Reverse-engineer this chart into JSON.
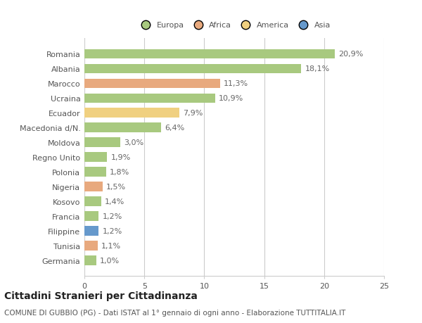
{
  "categories": [
    "Romania",
    "Albania",
    "Marocco",
    "Ucraina",
    "Ecuador",
    "Macedonia d/N.",
    "Moldova",
    "Regno Unito",
    "Polonia",
    "Nigeria",
    "Kosovo",
    "Francia",
    "Filippine",
    "Tunisia",
    "Germania"
  ],
  "values": [
    20.9,
    18.1,
    11.3,
    10.9,
    7.9,
    6.4,
    3.0,
    1.9,
    1.8,
    1.5,
    1.4,
    1.2,
    1.2,
    1.1,
    1.0
  ],
  "labels": [
    "20,9%",
    "18,1%",
    "11,3%",
    "10,9%",
    "7,9%",
    "6,4%",
    "3,0%",
    "1,9%",
    "1,8%",
    "1,5%",
    "1,4%",
    "1,2%",
    "1,2%",
    "1,1%",
    "1,0%"
  ],
  "colors": [
    "#a8c97f",
    "#a8c97f",
    "#e8a97e",
    "#a8c97f",
    "#f0d080",
    "#a8c97f",
    "#a8c97f",
    "#a8c97f",
    "#a8c97f",
    "#e8a97e",
    "#a8c97f",
    "#a8c97f",
    "#6699cc",
    "#e8a97e",
    "#a8c97f"
  ],
  "legend_labels": [
    "Europa",
    "Africa",
    "America",
    "Asia"
  ],
  "legend_colors": [
    "#a8c97f",
    "#e8a97e",
    "#f0d080",
    "#6699cc"
  ],
  "title": "Cittadini Stranieri per Cittadinanza",
  "subtitle": "COMUNE DI GUBBIO (PG) - Dati ISTAT al 1° gennaio di ogni anno - Elaborazione TUTTITALIA.IT",
  "xlim": [
    0,
    25
  ],
  "xticks": [
    0,
    5,
    10,
    15,
    20,
    25
  ],
  "bg_color": "#ffffff",
  "grid_color": "#cccccc",
  "bar_height": 0.65,
  "label_fontsize": 8.0,
  "tick_fontsize": 8.0,
  "title_fontsize": 10,
  "subtitle_fontsize": 7.5
}
